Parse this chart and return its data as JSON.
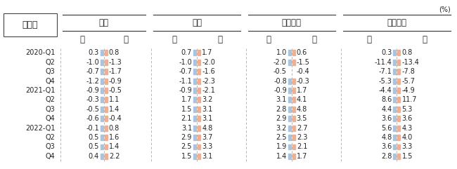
{
  "title_label": "全産業",
  "unit_label": "(%)",
  "countries": [
    "日本",
    "韓国",
    "フランス",
    "アメリカ"
  ],
  "gender_labels": [
    "男",
    "女"
  ],
  "row_labels": [
    "2020-Q1",
    "Q2",
    "Q3",
    "Q4",
    "2021-Q1",
    "Q2",
    "Q3",
    "Q4",
    "2022-Q1",
    "Q2",
    "Q3",
    "Q4"
  ],
  "data": {
    "日本": {
      "男": [
        0.3,
        -1.0,
        -0.7,
        -1.2,
        -0.9,
        -0.3,
        -0.5,
        -0.6,
        -0.1,
        0.5,
        0.5,
        0.4
      ],
      "女": [
        0.8,
        -1.3,
        -1.7,
        -0.9,
        -0.5,
        1.1,
        1.4,
        -0.4,
        0.8,
        1.6,
        1.4,
        2.2
      ]
    },
    "韓国": {
      "男": [
        0.7,
        -1.0,
        -0.7,
        -1.1,
        -0.9,
        1.7,
        1.5,
        2.1,
        3.1,
        2.9,
        2.5,
        1.5
      ],
      "女": [
        1.7,
        -2.0,
        -1.6,
        -2.3,
        -2.1,
        3.2,
        3.1,
        3.1,
        4.8,
        3.7,
        3.3,
        3.1
      ]
    },
    "フランス": {
      "男": [
        1.0,
        -2.0,
        -0.5,
        -0.8,
        -0.9,
        3.1,
        2.8,
        2.9,
        3.2,
        2.5,
        1.9,
        1.4
      ],
      "女": [
        0.6,
        -1.5,
        -0.4,
        -0.3,
        1.7,
        4.1,
        4.8,
        3.5,
        2.7,
        2.3,
        2.1,
        1.7
      ]
    },
    "アメリカ": {
      "男": [
        0.3,
        -11.4,
        -7.1,
        -5.3,
        -4.4,
        8.6,
        4.4,
        3.6,
        5.6,
        4.8,
        3.6,
        2.8
      ],
      "女": [
        0.8,
        -13.4,
        -7.8,
        -5.7,
        -4.9,
        11.7,
        5.3,
        3.6,
        4.3,
        4.0,
        3.3,
        1.5
      ]
    }
  },
  "bg_color": "#ffffff",
  "divider_color_male": "#a8c4df",
  "divider_color_female": "#f0b090",
  "text_color": "#222222",
  "font_size": 7.0,
  "header_font_size": 8.5,
  "title_font_size": 9.0,
  "marker_rows": [
    1,
    2,
    3,
    4,
    5
  ]
}
